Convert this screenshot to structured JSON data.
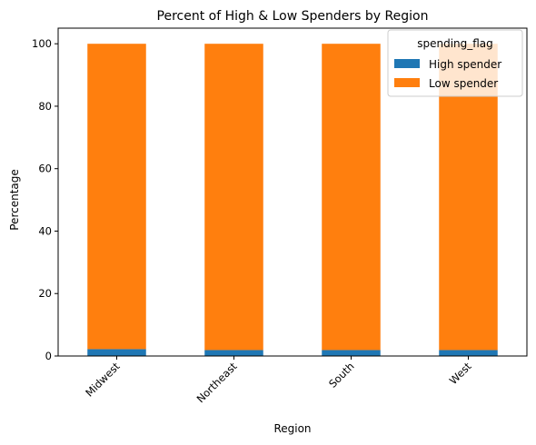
{
  "chart_data": {
    "type": "bar",
    "stacked": true,
    "title": "Percent of High & Low Spenders by Region",
    "xlabel": "Region",
    "ylabel": "Percentage",
    "categories": [
      "Midwest",
      "Northeast",
      "South",
      "West"
    ],
    "series": [
      {
        "name": "High spender",
        "values": [
          2.2,
          1.9,
          1.9,
          1.9
        ],
        "color": "#1f77b4"
      },
      {
        "name": "Low spender",
        "values": [
          97.8,
          98.1,
          98.1,
          98.1
        ],
        "color": "#ff7f0e"
      }
    ],
    "ylim": [
      0,
      105
    ],
    "yticks": [
      0,
      20,
      40,
      60,
      80,
      100
    ],
    "legend": {
      "title": "spending_flag",
      "placement": "top-right"
    },
    "grid": false
  }
}
